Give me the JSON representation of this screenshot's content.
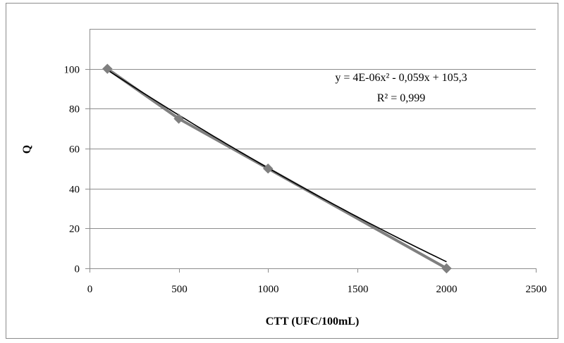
{
  "chart_data": {
    "type": "scatter",
    "title": "",
    "xlabel": "CTT (UFC/100mL)",
    "ylabel": "Q",
    "xlim": [
      0,
      2500
    ],
    "ylim": [
      0,
      120
    ],
    "x_ticks": [
      0,
      500,
      1000,
      1500,
      2000,
      2500
    ],
    "y_ticks": [
      0,
      20,
      40,
      60,
      80,
      100
    ],
    "grid": {
      "horizontal": true,
      "vertical": false
    },
    "series": [
      {
        "x": [
          100,
          500,
          1000,
          2000
        ],
        "y": [
          100,
          75,
          50,
          0
        ],
        "marker": "diamond",
        "line": true,
        "color": "#7f7f7f"
      }
    ],
    "trendline": {
      "type": "polynomial",
      "order": 2,
      "coefficients": [
        4e-06,
        -0.059,
        105.3
      ],
      "color": "#000000"
    },
    "annotations": {
      "equation": "y = 4E-06x² - 0,059x + 105,3",
      "r_squared": "R² = 0,999"
    }
  }
}
